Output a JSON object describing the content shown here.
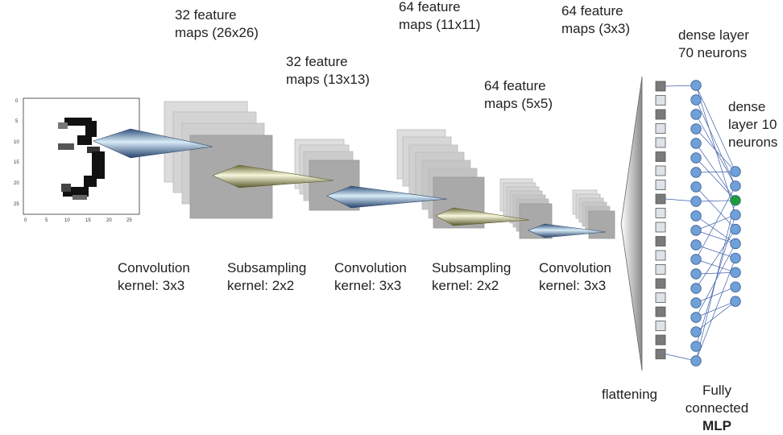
{
  "input_axes": {
    "y_ticks": [
      "0",
      "5",
      "10",
      "15",
      "20",
      "25"
    ],
    "x_ticks": [
      "0",
      "5",
      "10",
      "15",
      "20",
      "25"
    ]
  },
  "labels": {
    "maps1": {
      "line1": "32 feature",
      "line2": "maps (26x26)"
    },
    "maps2": {
      "line1": "32 feature",
      "line2": "maps (13x13)"
    },
    "maps3": {
      "line1": "64 feature",
      "line2": "maps (11x11)"
    },
    "maps4": {
      "line1": "64 feature",
      "line2": "maps (5x5)"
    },
    "maps5": {
      "line1": "64 feature",
      "line2": "maps (3x3)"
    },
    "dense70": {
      "line1": "dense layer",
      "line2": "70 neurons"
    },
    "dense10": {
      "line1": "dense",
      "line2": "layer 10",
      "line3": "neurons"
    },
    "op1": {
      "line1": "Convolution",
      "line2": "kernel: 3x3"
    },
    "op2": {
      "line1": "Subsampling",
      "line2": "kernel: 2x2"
    },
    "op3": {
      "line1": "Convolution",
      "line2": "kernel: 3x3"
    },
    "op4": {
      "line1": "Subsampling",
      "line2": "kernel: 2x2"
    },
    "op5": {
      "line1": "Convolution",
      "line2": "kernel: 3x3"
    },
    "flattening": "flattening",
    "mlp": {
      "line1": "Fully",
      "line2": "connected",
      "line3": "MLP"
    }
  },
  "colors": {
    "map_fill": "#c8c8c8",
    "map_front": "#a9a9a9",
    "neuron": "#6fa0d8",
    "neuron_active": "#1e9e3a",
    "connection": "#3c5ea8",
    "flat_dark": "#7a7a7a",
    "flat_light": "#dde3e8"
  }
}
